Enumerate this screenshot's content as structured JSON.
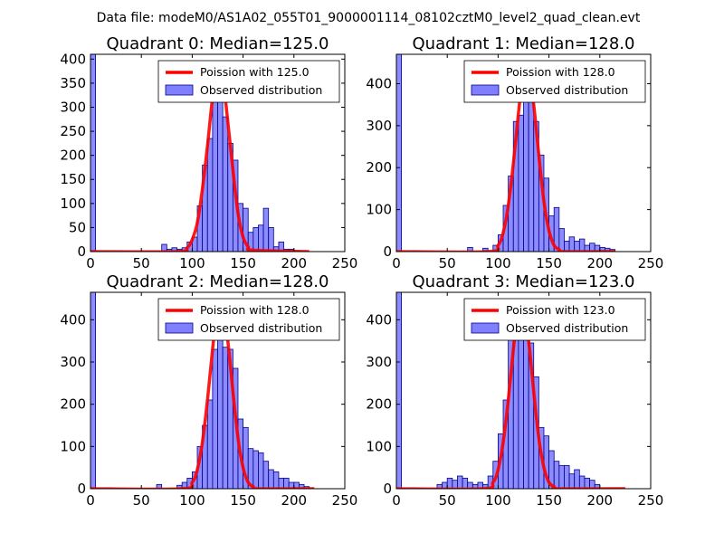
{
  "suptitle": "Data file: modeM0/AS1A02_055T01_9000001114_08102cztM0_level2_quad_clean.evt",
  "colors": {
    "bar_fill": "#7f7fff",
    "bar_edge": "#00008b",
    "poisson_line": "#ff0000",
    "axes": "#000000"
  },
  "chart_data": [
    {
      "type": "bar",
      "title": "Quadrant 0: Median=125.0",
      "median": 125.0,
      "xlim": [
        0,
        250
      ],
      "ylim": [
        0,
        410
      ],
      "xticks": [
        "0",
        "50",
        "100",
        "150",
        "200",
        "250"
      ],
      "yticks": [
        "0",
        "50",
        "100",
        "150",
        "200",
        "250",
        "300",
        "350",
        "400"
      ],
      "legend": [
        "Poission with 125.0",
        "Observed distribution"
      ],
      "bin_width": 5,
      "observed": [
        {
          "x": 0,
          "y": 410
        },
        {
          "x": 70,
          "y": 15
        },
        {
          "x": 75,
          "y": 5
        },
        {
          "x": 80,
          "y": 8
        },
        {
          "x": 85,
          "y": 5
        },
        {
          "x": 90,
          "y": 8
        },
        {
          "x": 95,
          "y": 20
        },
        {
          "x": 100,
          "y": 30
        },
        {
          "x": 105,
          "y": 95
        },
        {
          "x": 110,
          "y": 180
        },
        {
          "x": 115,
          "y": 235
        },
        {
          "x": 120,
          "y": 325
        },
        {
          "x": 125,
          "y": 345
        },
        {
          "x": 130,
          "y": 280
        },
        {
          "x": 135,
          "y": 225
        },
        {
          "x": 140,
          "y": 190
        },
        {
          "x": 145,
          "y": 100
        },
        {
          "x": 150,
          "y": 90
        },
        {
          "x": 155,
          "y": 40
        },
        {
          "x": 160,
          "y": 50
        },
        {
          "x": 165,
          "y": 55
        },
        {
          "x": 170,
          "y": 90
        },
        {
          "x": 175,
          "y": 50
        },
        {
          "x": 180,
          "y": 10
        },
        {
          "x": 185,
          "y": 20
        },
        {
          "x": 190,
          "y": 5
        },
        {
          "x": 195,
          "y": 5
        }
      ],
      "poisson": [
        {
          "x": 0,
          "y": 0
        },
        {
          "x": 85,
          "y": 0
        },
        {
          "x": 95,
          "y": 8
        },
        {
          "x": 100,
          "y": 25
        },
        {
          "x": 105,
          "y": 60
        },
        {
          "x": 110,
          "y": 130
        },
        {
          "x": 115,
          "y": 220
        },
        {
          "x": 120,
          "y": 320
        },
        {
          "x": 125,
          "y": 390
        },
        {
          "x": 130,
          "y": 360
        },
        {
          "x": 135,
          "y": 270
        },
        {
          "x": 140,
          "y": 170
        },
        {
          "x": 145,
          "y": 80
        },
        {
          "x": 150,
          "y": 30
        },
        {
          "x": 155,
          "y": 10
        },
        {
          "x": 160,
          "y": 3
        },
        {
          "x": 215,
          "y": 0
        }
      ]
    },
    {
      "type": "bar",
      "title": "Quadrant 1: Median=128.0",
      "median": 128.0,
      "xlim": [
        0,
        250
      ],
      "ylim": [
        0,
        470
      ],
      "xticks": [
        "0",
        "50",
        "100",
        "150",
        "200",
        "250"
      ],
      "yticks": [
        "0",
        "100",
        "200",
        "300",
        "400"
      ],
      "legend": [
        "Poission with 128.0",
        "Observed distribution"
      ],
      "bin_width": 5,
      "observed": [
        {
          "x": 0,
          "y": 470
        },
        {
          "x": 70,
          "y": 10
        },
        {
          "x": 85,
          "y": 8
        },
        {
          "x": 95,
          "y": 15
        },
        {
          "x": 100,
          "y": 40
        },
        {
          "x": 105,
          "y": 110
        },
        {
          "x": 110,
          "y": 180
        },
        {
          "x": 115,
          "y": 310
        },
        {
          "x": 120,
          "y": 325
        },
        {
          "x": 125,
          "y": 395
        },
        {
          "x": 130,
          "y": 390
        },
        {
          "x": 135,
          "y": 310
        },
        {
          "x": 140,
          "y": 230
        },
        {
          "x": 145,
          "y": 175
        },
        {
          "x": 150,
          "y": 85
        },
        {
          "x": 155,
          "y": 105
        },
        {
          "x": 160,
          "y": 55
        },
        {
          "x": 165,
          "y": 25
        },
        {
          "x": 170,
          "y": 35
        },
        {
          "x": 175,
          "y": 25
        },
        {
          "x": 180,
          "y": 30
        },
        {
          "x": 185,
          "y": 15
        },
        {
          "x": 190,
          "y": 20
        },
        {
          "x": 195,
          "y": 15
        },
        {
          "x": 200,
          "y": 10
        },
        {
          "x": 205,
          "y": 8
        },
        {
          "x": 210,
          "y": 5
        }
      ],
      "poisson": [
        {
          "x": 0,
          "y": 0
        },
        {
          "x": 90,
          "y": 0
        },
        {
          "x": 100,
          "y": 15
        },
        {
          "x": 105,
          "y": 45
        },
        {
          "x": 110,
          "y": 110
        },
        {
          "x": 115,
          "y": 210
        },
        {
          "x": 120,
          "y": 330
        },
        {
          "x": 125,
          "y": 430
        },
        {
          "x": 130,
          "y": 430
        },
        {
          "x": 135,
          "y": 350
        },
        {
          "x": 140,
          "y": 230
        },
        {
          "x": 145,
          "y": 120
        },
        {
          "x": 150,
          "y": 50
        },
        {
          "x": 155,
          "y": 15
        },
        {
          "x": 160,
          "y": 5
        },
        {
          "x": 165,
          "y": 0
        },
        {
          "x": 215,
          "y": 0
        }
      ]
    },
    {
      "type": "bar",
      "title": "Quadrant 2: Median=128.0",
      "median": 128.0,
      "xlim": [
        0,
        250
      ],
      "ylim": [
        0,
        465
      ],
      "xticks": [
        "0",
        "50",
        "100",
        "150",
        "200",
        "250"
      ],
      "yticks": [
        "0",
        "100",
        "200",
        "300",
        "400"
      ],
      "legend": [
        "Poission with 128.0",
        "Observed distribution"
      ],
      "bin_width": 5,
      "observed": [
        {
          "x": 0,
          "y": 465
        },
        {
          "x": 65,
          "y": 10
        },
        {
          "x": 85,
          "y": 8
        },
        {
          "x": 90,
          "y": 15
        },
        {
          "x": 95,
          "y": 25
        },
        {
          "x": 100,
          "y": 40
        },
        {
          "x": 105,
          "y": 100
        },
        {
          "x": 110,
          "y": 150
        },
        {
          "x": 115,
          "y": 210
        },
        {
          "x": 120,
          "y": 330
        },
        {
          "x": 125,
          "y": 370
        },
        {
          "x": 130,
          "y": 335
        },
        {
          "x": 135,
          "y": 330
        },
        {
          "x": 140,
          "y": 285
        },
        {
          "x": 145,
          "y": 165
        },
        {
          "x": 150,
          "y": 145
        },
        {
          "x": 155,
          "y": 95
        },
        {
          "x": 160,
          "y": 90
        },
        {
          "x": 165,
          "y": 85
        },
        {
          "x": 170,
          "y": 65
        },
        {
          "x": 175,
          "y": 45
        },
        {
          "x": 180,
          "y": 40
        },
        {
          "x": 185,
          "y": 25
        },
        {
          "x": 190,
          "y": 25
        },
        {
          "x": 195,
          "y": 15
        },
        {
          "x": 200,
          "y": 15
        },
        {
          "x": 205,
          "y": 10
        },
        {
          "x": 210,
          "y": 5
        }
      ],
      "poisson": [
        {
          "x": 0,
          "y": 0
        },
        {
          "x": 90,
          "y": 0
        },
        {
          "x": 100,
          "y": 15
        },
        {
          "x": 105,
          "y": 45
        },
        {
          "x": 110,
          "y": 110
        },
        {
          "x": 115,
          "y": 210
        },
        {
          "x": 120,
          "y": 330
        },
        {
          "x": 125,
          "y": 430
        },
        {
          "x": 130,
          "y": 430
        },
        {
          "x": 135,
          "y": 350
        },
        {
          "x": 140,
          "y": 230
        },
        {
          "x": 145,
          "y": 120
        },
        {
          "x": 150,
          "y": 50
        },
        {
          "x": 155,
          "y": 15
        },
        {
          "x": 160,
          "y": 5
        },
        {
          "x": 165,
          "y": 0
        },
        {
          "x": 220,
          "y": 0
        }
      ]
    },
    {
      "type": "bar",
      "title": "Quadrant 3: Median=123.0",
      "median": 123.0,
      "xlim": [
        0,
        250
      ],
      "ylim": [
        0,
        465
      ],
      "xticks": [
        "0",
        "50",
        "100",
        "150",
        "200",
        "250"
      ],
      "yticks": [
        "0",
        "100",
        "200",
        "300",
        "400"
      ],
      "legend": [
        "Poission with 123.0",
        "Observed distribution"
      ],
      "bin_width": 5,
      "observed": [
        {
          "x": 0,
          "y": 465
        },
        {
          "x": 40,
          "y": 10
        },
        {
          "x": 45,
          "y": 15
        },
        {
          "x": 50,
          "y": 25
        },
        {
          "x": 55,
          "y": 20
        },
        {
          "x": 60,
          "y": 30
        },
        {
          "x": 65,
          "y": 25
        },
        {
          "x": 70,
          "y": 15
        },
        {
          "x": 75,
          "y": 10
        },
        {
          "x": 80,
          "y": 15
        },
        {
          "x": 85,
          "y": 10
        },
        {
          "x": 90,
          "y": 30
        },
        {
          "x": 95,
          "y": 65
        },
        {
          "x": 100,
          "y": 130
        },
        {
          "x": 105,
          "y": 210
        },
        {
          "x": 110,
          "y": 355
        },
        {
          "x": 115,
          "y": 400
        },
        {
          "x": 120,
          "y": 410
        },
        {
          "x": 125,
          "y": 360
        },
        {
          "x": 130,
          "y": 345
        },
        {
          "x": 135,
          "y": 265
        },
        {
          "x": 140,
          "y": 145
        },
        {
          "x": 145,
          "y": 125
        },
        {
          "x": 150,
          "y": 90
        },
        {
          "x": 155,
          "y": 65
        },
        {
          "x": 160,
          "y": 55
        },
        {
          "x": 165,
          "y": 55
        },
        {
          "x": 170,
          "y": 35
        },
        {
          "x": 175,
          "y": 45
        },
        {
          "x": 180,
          "y": 30
        },
        {
          "x": 185,
          "y": 25
        },
        {
          "x": 190,
          "y": 20
        },
        {
          "x": 195,
          "y": 10
        }
      ],
      "poisson": [
        {
          "x": 0,
          "y": 0
        },
        {
          "x": 85,
          "y": 0
        },
        {
          "x": 95,
          "y": 15
        },
        {
          "x": 100,
          "y": 45
        },
        {
          "x": 105,
          "y": 110
        },
        {
          "x": 110,
          "y": 210
        },
        {
          "x": 115,
          "y": 330
        },
        {
          "x": 120,
          "y": 430
        },
        {
          "x": 125,
          "y": 430
        },
        {
          "x": 130,
          "y": 350
        },
        {
          "x": 135,
          "y": 230
        },
        {
          "x": 140,
          "y": 120
        },
        {
          "x": 145,
          "y": 50
        },
        {
          "x": 150,
          "y": 15
        },
        {
          "x": 155,
          "y": 5
        },
        {
          "x": 160,
          "y": 0
        },
        {
          "x": 225,
          "y": 0
        }
      ]
    }
  ]
}
